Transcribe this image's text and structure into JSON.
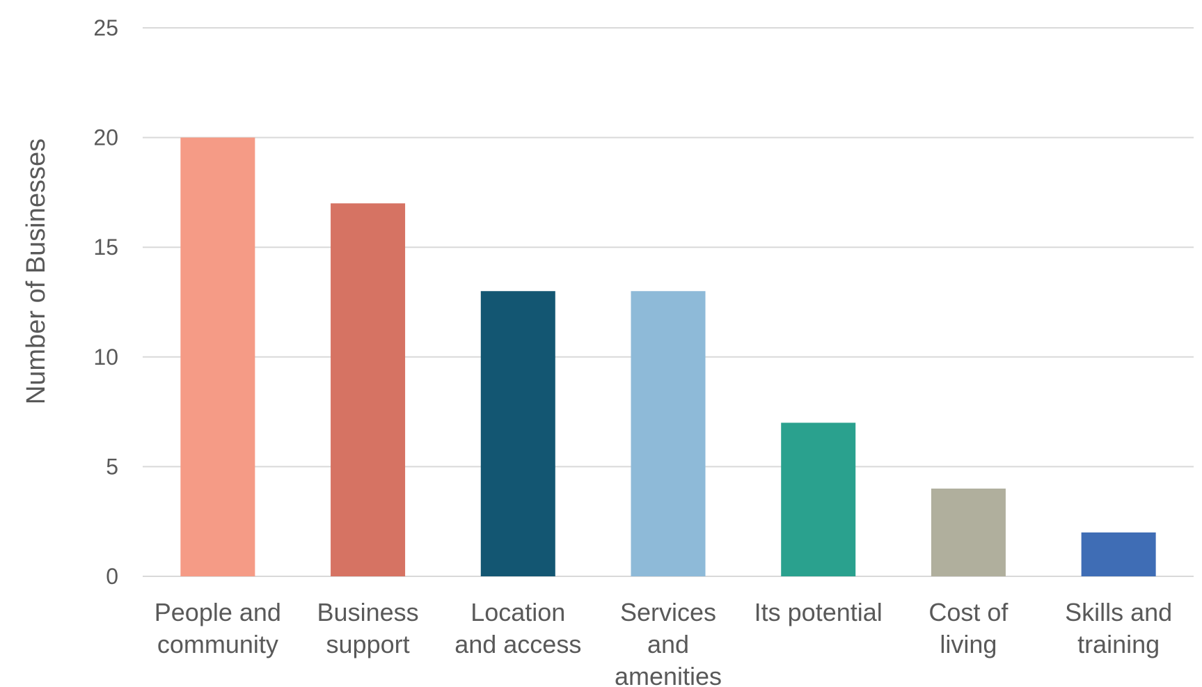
{
  "chart_data": {
    "type": "bar",
    "title": "",
    "xlabel": "",
    "ylabel": "Number of Businesses",
    "ylim": [
      0,
      25
    ],
    "yticks": [
      0,
      5,
      10,
      15,
      20,
      25
    ],
    "grid": true,
    "categories": [
      [
        "People and",
        "community"
      ],
      [
        "Business",
        "support"
      ],
      [
        "Location",
        "and access"
      ],
      [
        "Services",
        "and",
        "amenities"
      ],
      [
        "Its potential"
      ],
      [
        "Cost of",
        "living"
      ],
      [
        "Skills and",
        "training"
      ]
    ],
    "values": [
      20,
      17,
      13,
      13,
      7,
      4,
      2
    ],
    "colors": [
      "#F59B86",
      "#D67363",
      "#135672",
      "#8EBAD8",
      "#2AA18E",
      "#B0AF9D",
      "#3F6DB5"
    ]
  }
}
